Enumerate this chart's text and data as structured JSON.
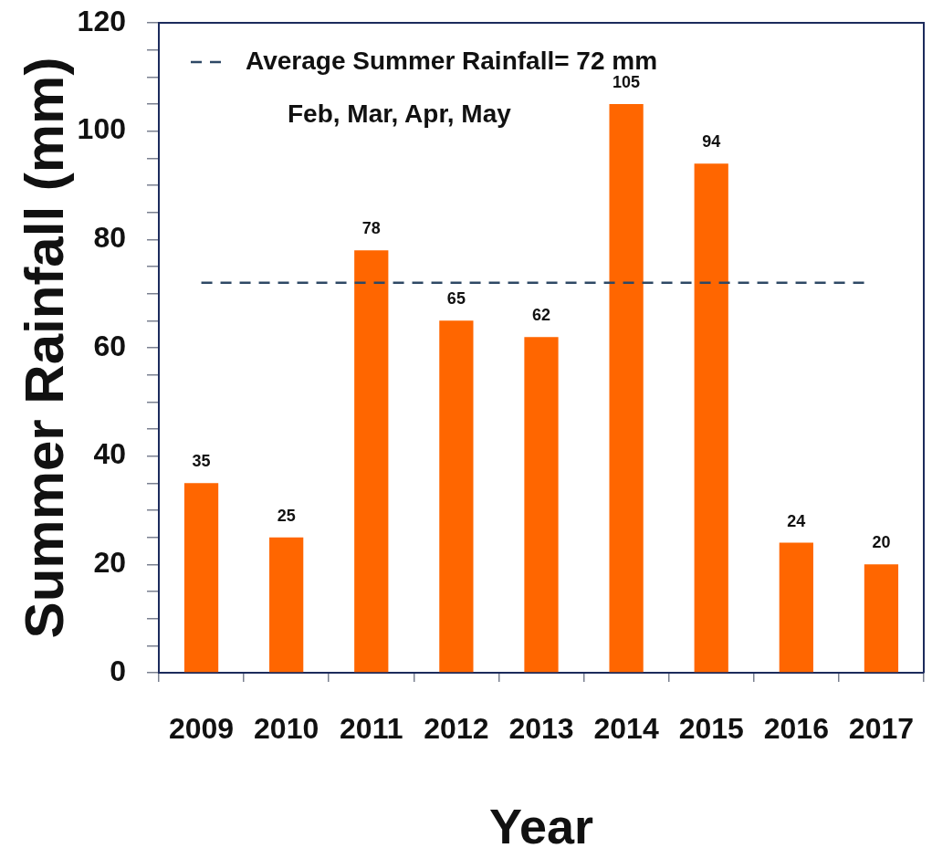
{
  "chart_data": {
    "type": "bar",
    "xlabel": "Year",
    "ylabel": "Summer Rainfall (mm)",
    "categories": [
      "2009",
      "2010",
      "2011",
      "2012",
      "2013",
      "2014",
      "2015",
      "2016",
      "2017"
    ],
    "values": [
      35,
      25,
      78,
      65,
      62,
      105,
      94,
      24,
      20
    ],
    "color": "#ff6600",
    "ylim": [
      0,
      120
    ],
    "yticks": [
      0,
      {
        "value": 5,
        "label": null
      },
      {
        "value": 10,
        "label": null
      },
      {
        "value": 15,
        "label": null
      },
      20,
      {
        "value": 25,
        "label": null
      },
      {
        "value": 30,
        "label": null
      },
      {
        "value": 35,
        "label": null
      },
      40,
      {
        "value": 45,
        "label": null
      },
      {
        "value": 50,
        "label": null
      },
      {
        "value": 55,
        "label": null
      },
      60,
      {
        "value": 65,
        "label": null
      },
      {
        "value": 70,
        "label": null
      },
      {
        "value": 75,
        "label": null
      },
      80,
      {
        "value": 85,
        "label": null
      },
      {
        "value": 90,
        "label": null
      },
      {
        "value": 95,
        "label": null
      },
      100,
      {
        "value": 105,
        "label": null
      },
      {
        "value": 110,
        "label": null
      },
      {
        "value": 115,
        "label": null
      },
      120
    ],
    "data_labels": true,
    "grid": false,
    "legend": "top left",
    "ref_lines": [
      {
        "axis": "y",
        "value": 72,
        "label": "Average Summer Rainfall= 72 mm",
        "color": "#2e4865",
        "line_style": "dashed"
      }
    ],
    "annotations": [
      "Feb, Mar, Apr, May"
    ]
  }
}
